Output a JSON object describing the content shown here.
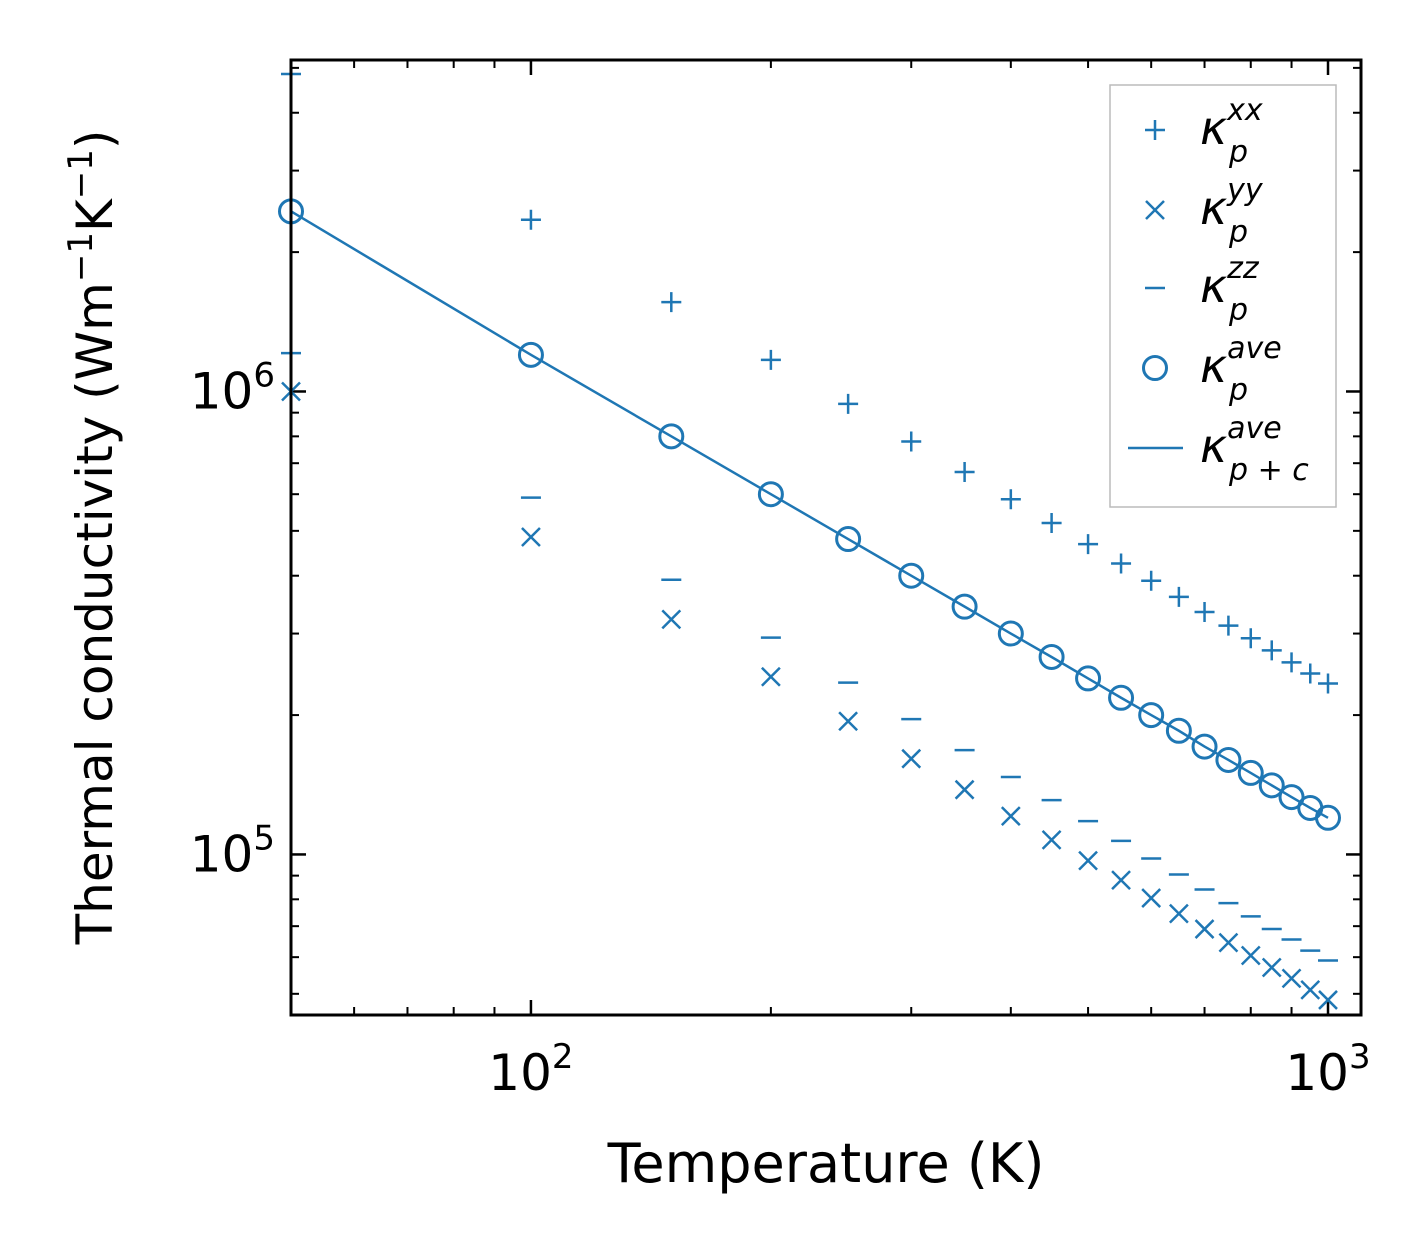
{
  "chart_data": {
    "type": "scatter",
    "xscale": "log",
    "yscale": "log",
    "xlabel": "Temperature (K)",
    "ylabel": {
      "prefix": "Thermal conductivity (Wm",
      "exp1": "−1",
      "mid": "K",
      "exp2": "−1",
      "suffix": ")"
    },
    "xlim": [
      50,
      1100
    ],
    "ylim": [
      45000,
      5200000
    ],
    "xticks": [
      {
        "value": 100,
        "base": "10",
        "exp": "2"
      },
      {
        "value": 1000,
        "base": "10",
        "exp": "3"
      }
    ],
    "yticks": [
      {
        "value": 100000,
        "base": "10",
        "exp": "5"
      },
      {
        "value": 1000000,
        "base": "10",
        "exp": "6"
      }
    ],
    "x": [
      50,
      100,
      150,
      200,
      250,
      300,
      350,
      400,
      450,
      500,
      550,
      600,
      650,
      700,
      750,
      800,
      850,
      900,
      950,
      1000
    ],
    "series": [
      {
        "id": "xx",
        "marker": "plus",
        "symbol": "κ",
        "sub": "p",
        "sup": "xx",
        "values": [
          4850000,
          2350000,
          1560000,
          1170000,
          940000,
          780000,
          670000,
          585000,
          520000,
          468000,
          425000,
          390000,
          360000,
          334000,
          312000,
          293000,
          276000,
          260000,
          246000,
          234000
        ]
      },
      {
        "id": "yy",
        "marker": "x",
        "symbol": "κ",
        "sub": "p",
        "sup": "yy",
        "values": [
          1000000,
          485000,
          322000,
          242000,
          194000,
          161000,
          138000,
          121000,
          107500,
          97000,
          88000,
          80500,
          74500,
          69000,
          64500,
          60500,
          57000,
          54000,
          51000,
          48500
        ]
      },
      {
        "id": "zz",
        "marker": "dash",
        "symbol": "κ",
        "sub": "p",
        "sup": "zz",
        "values": [
          1210000,
          590000,
          392000,
          294000,
          235000,
          196000,
          168000,
          147000,
          131000,
          118000,
          107000,
          98000,
          90500,
          84000,
          78500,
          73500,
          69000,
          65500,
          62000,
          59000
        ]
      },
      {
        "id": "ave",
        "marker": "circle",
        "symbol": "κ",
        "sub": "p",
        "sup": "ave",
        "values": [
          2450000,
          1200000,
          800000,
          600000,
          480000,
          400000,
          343000,
          300000,
          267000,
          240000,
          218000,
          200000,
          185000,
          171000,
          160000,
          150000,
          141000,
          133000,
          126000,
          120000
        ]
      },
      {
        "id": "ave_pc",
        "marker": "line",
        "symbol": "κ",
        "sub": "p + c",
        "sup": "ave",
        "values": [
          2450000,
          1200000,
          800000,
          600000,
          480000,
          400000,
          343000,
          300000,
          267000,
          240000,
          218000,
          200000,
          185000,
          171000,
          160000,
          150000,
          141000,
          133000,
          126000,
          120000
        ]
      }
    ],
    "legend": {
      "position": "top-right"
    },
    "color": "#1f77b4"
  }
}
